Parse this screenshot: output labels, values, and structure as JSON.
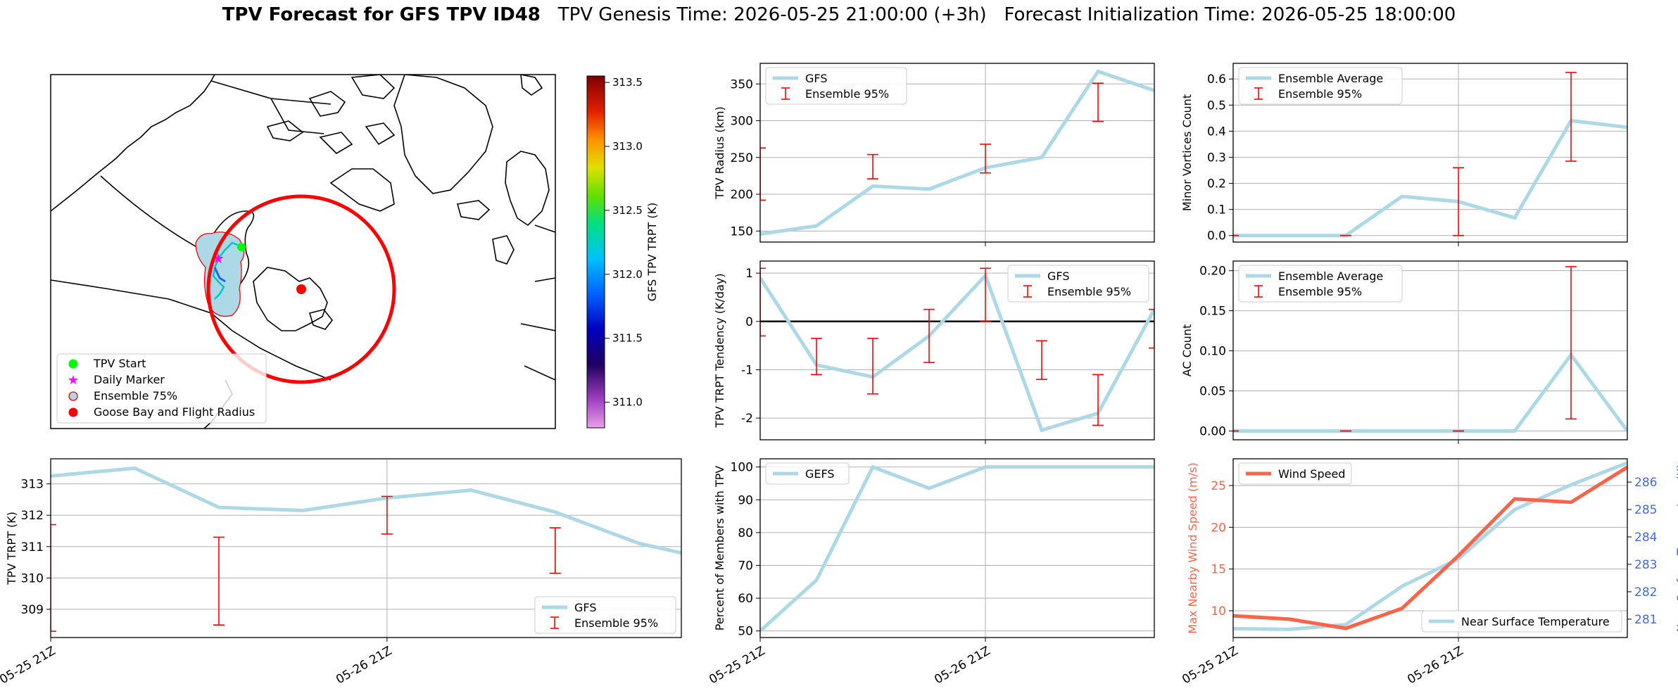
{
  "title": {
    "bold": "TPV Forecast for GFS TPV ID48",
    "genesis": "TPV Genesis Time: 2026-05-25 21:00:00 (+3h)",
    "init": "Forecast Initialization Time: 2026-05-25 18:00:00"
  },
  "colors": {
    "gfs_line": "#add8e6",
    "errorbar": "#ff0000",
    "wind": "#ff6347",
    "temp_axis": "#4169e1",
    "start_marker": "#00ff00",
    "daily_marker": "#ff00ff",
    "goose_bay": "#ff0000"
  },
  "map": {
    "legend": [
      "TPV Start",
      "Daily Marker",
      "Ensemble 75%",
      "Goose Bay and Flight Radius"
    ],
    "colorbar": {
      "label": "GFS TPV TRPT (K)",
      "ticks": [
        "313.5",
        "313.0",
        "312.5",
        "312.0",
        "311.5",
        "311.0"
      ],
      "tick_values": [
        313.5,
        313.0,
        312.5,
        312.0,
        311.5,
        311.0
      ],
      "range": [
        310.8,
        313.55
      ]
    }
  },
  "chart_data": [
    {
      "id": "trpt",
      "type": "line",
      "ylabel": "TPV TRPT (K)",
      "xlim": [
        0,
        45
      ],
      "ylim": [
        308.1,
        313.8
      ],
      "yticks": [
        309,
        310,
        311,
        312,
        313
      ],
      "xticks": [
        {
          "x": 0,
          "label": "05-25 21Z"
        },
        {
          "x": 24,
          "label": "05-26 21Z"
        }
      ],
      "legend_pos": "lower right",
      "series": [
        {
          "name": "GFS",
          "x": [
            0,
            6,
            12,
            18,
            24,
            30,
            36,
            42,
            45
          ],
          "values": [
            313.25,
            313.5,
            312.25,
            312.15,
            312.55,
            312.8,
            312.1,
            311.1,
            310.8
          ]
        }
      ],
      "errorbars": {
        "name": "Ensemble 95%",
        "points": [
          {
            "x": 0,
            "lo": 308.3,
            "hi": 311.7
          },
          {
            "x": 12,
            "lo": 308.5,
            "hi": 311.3
          },
          {
            "x": 24,
            "lo": 311.4,
            "hi": 312.6
          },
          {
            "x": 36,
            "lo": 310.15,
            "hi": 311.6
          }
        ]
      }
    },
    {
      "id": "radius",
      "type": "line",
      "ylabel": "TPV Radius (km)",
      "xlim": [
        0,
        42
      ],
      "ylim": [
        135,
        378
      ],
      "yticks": [
        150,
        200,
        250,
        300,
        350
      ],
      "xticks": [
        {
          "x": 24,
          "label": ""
        }
      ],
      "legend_pos": "upper left",
      "series": [
        {
          "name": "GFS",
          "x": [
            0,
            6,
            12,
            18,
            24,
            30,
            36,
            42
          ],
          "values": [
            146,
            157,
            211,
            207,
            236,
            250,
            367,
            341
          ]
        }
      ],
      "errorbars": {
        "name": "Ensemble 95%",
        "points": [
          {
            "x": 0,
            "lo": 192,
            "hi": 263
          },
          {
            "x": 12,
            "lo": 221,
            "hi": 254
          },
          {
            "x": 24,
            "lo": 229,
            "hi": 268
          },
          {
            "x": 36,
            "lo": 299,
            "hi": 351
          }
        ]
      }
    },
    {
      "id": "tendency",
      "type": "line",
      "ylabel": "TPV TRPT Tendency (K/day)",
      "xlim": [
        0,
        42
      ],
      "ylim": [
        -2.45,
        1.25
      ],
      "yticks": [
        -2,
        -1,
        0,
        1
      ],
      "xticks": [
        {
          "x": 24,
          "label": ""
        }
      ],
      "zero_line": true,
      "legend_pos": "upper right",
      "series": [
        {
          "name": "GFS",
          "x": [
            0,
            6,
            12,
            18,
            24,
            30,
            36,
            42
          ],
          "values": [
            0.9,
            -0.9,
            -1.15,
            -0.3,
            0.95,
            -2.25,
            -1.9,
            0.25
          ]
        }
      ],
      "errorbars": {
        "name": "Ensemble 95%",
        "points": [
          {
            "x": 0,
            "lo": -0.3,
            "hi": 1.1
          },
          {
            "x": 6,
            "lo": -1.1,
            "hi": -0.35
          },
          {
            "x": 12,
            "lo": -1.5,
            "hi": -0.35
          },
          {
            "x": 18,
            "lo": -0.85,
            "hi": 0.25
          },
          {
            "x": 24,
            "lo": 0.0,
            "hi": 1.1
          },
          {
            "x": 30,
            "lo": -1.2,
            "hi": -0.4
          },
          {
            "x": 36,
            "lo": -2.15,
            "hi": -1.1
          },
          {
            "x": 42,
            "lo": -0.55,
            "hi": 0.25
          }
        ]
      }
    },
    {
      "id": "members",
      "type": "line",
      "ylabel": "Percent of Members with TPV",
      "xlim": [
        0,
        42
      ],
      "ylim": [
        48,
        102.5
      ],
      "yticks": [
        50,
        60,
        70,
        80,
        90,
        100
      ],
      "xticks": [
        {
          "x": 0,
          "label": "05-25 21Z"
        },
        {
          "x": 24,
          "label": "05-26 21Z"
        }
      ],
      "legend_pos": "upper left",
      "series": [
        {
          "name": "GEFS",
          "x": [
            0,
            6,
            12,
            18,
            24,
            30,
            36,
            42
          ],
          "values": [
            50,
            65.5,
            100,
            93.5,
            100,
            100,
            100,
            100
          ]
        }
      ]
    },
    {
      "id": "minor",
      "type": "line",
      "ylabel": "Minor Vortices Count",
      "xlim": [
        0,
        42
      ],
      "ylim": [
        -0.025,
        0.66
      ],
      "yticks": [
        0.0,
        0.1,
        0.2,
        0.3,
        0.4,
        0.5,
        0.6
      ],
      "ytick_labels": [
        "0.0",
        "0.1",
        "0.2",
        "0.3",
        "0.4",
        "0.5",
        "0.6"
      ],
      "xticks": [
        {
          "x": 24,
          "label": ""
        }
      ],
      "legend_pos": "upper left",
      "series": [
        {
          "name": "Ensemble Average",
          "x": [
            0,
            6,
            12,
            18,
            24,
            30,
            36,
            42
          ],
          "values": [
            0,
            0,
            0,
            0.15,
            0.13,
            0.068,
            0.44,
            0.415
          ]
        }
      ],
      "errorbars": {
        "name": "Ensemble 95%",
        "points": [
          {
            "x": 0,
            "lo": 0,
            "hi": 0
          },
          {
            "x": 12,
            "lo": 0,
            "hi": 0
          },
          {
            "x": 24,
            "lo": 0,
            "hi": 0.26
          },
          {
            "x": 36,
            "lo": 0.285,
            "hi": 0.625
          }
        ]
      }
    },
    {
      "id": "ac",
      "type": "line",
      "ylabel": "AC Count",
      "xlim": [
        0,
        42
      ],
      "ylim": [
        -0.011,
        0.212
      ],
      "yticks": [
        0.0,
        0.05,
        0.1,
        0.15,
        0.2
      ],
      "ytick_labels": [
        "0.00",
        "0.05",
        "0.10",
        "0.15",
        "0.20"
      ],
      "xticks": [
        {
          "x": 24,
          "label": ""
        }
      ],
      "legend_pos": "upper left",
      "series": [
        {
          "name": "Ensemble Average",
          "x": [
            0,
            6,
            12,
            18,
            24,
            30,
            36,
            42
          ],
          "values": [
            0,
            0,
            0,
            0,
            0,
            0,
            0.095,
            0
          ]
        }
      ],
      "errorbars": {
        "name": "Ensemble 95%",
        "points": [
          {
            "x": 0,
            "lo": 0,
            "hi": 0
          },
          {
            "x": 12,
            "lo": 0,
            "hi": 0
          },
          {
            "x": 24,
            "lo": 0,
            "hi": 0
          },
          {
            "x": 36,
            "lo": 0.015,
            "hi": 0.205
          }
        ]
      }
    },
    {
      "id": "wind",
      "type": "line",
      "ylabel": "Max Nearby Wind Speed (m/s)",
      "ylabel_right": "Near Surface Temperature (K)",
      "xlim": [
        0,
        42
      ],
      "ylim": [
        6.8,
        28.2
      ],
      "yticks": [
        10,
        15,
        20,
        25
      ],
      "ylim_right": [
        280.33,
        286.85
      ],
      "yticks_right": [
        281,
        282,
        283,
        284,
        285,
        286
      ],
      "xticks": [
        {
          "x": 0,
          "label": "05-25 21Z"
        },
        {
          "x": 24,
          "label": "05-26 21Z"
        }
      ],
      "series": [
        {
          "name": "Wind Speed",
          "axis": "left",
          "x": [
            0,
            6,
            12,
            18,
            24,
            30,
            36,
            42
          ],
          "values": [
            9.4,
            9.0,
            7.9,
            10.3,
            16.6,
            23.4,
            23.0,
            27.2
          ]
        },
        {
          "name": "Near Surface Temperature",
          "axis": "right",
          "x": [
            0,
            6,
            12,
            18,
            24,
            30,
            36,
            42
          ],
          "values": [
            280.65,
            280.63,
            280.8,
            282.2,
            283.2,
            285.0,
            285.9,
            286.7
          ]
        }
      ]
    }
  ]
}
